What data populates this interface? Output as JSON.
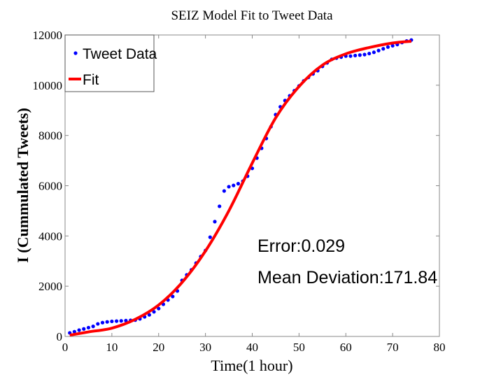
{
  "chart_data": {
    "type": "scatter",
    "title": "SEIZ Model Fit to Tweet Data",
    "xlabel": "Time(1 hour)",
    "ylabel": "I (Cummulated Tweets)",
    "xlim": [
      0,
      80
    ],
    "ylim": [
      0,
      12000
    ],
    "xticks": [
      0,
      10,
      20,
      30,
      40,
      50,
      60,
      70,
      80
    ],
    "yticks": [
      0,
      2000,
      4000,
      6000,
      8000,
      10000,
      12000
    ],
    "grid": false,
    "legend_position": "top-left",
    "series": [
      {
        "name": "Tweet Data",
        "kind": "scatter",
        "color": "#0000ff",
        "x": [
          1,
          2,
          3,
          4,
          5,
          6,
          7,
          8,
          9,
          10,
          11,
          12,
          13,
          14,
          15,
          16,
          17,
          18,
          19,
          20,
          21,
          22,
          23,
          24,
          25,
          26,
          27,
          28,
          29,
          30,
          31,
          32,
          33,
          34,
          35,
          36,
          37,
          38,
          39,
          40,
          41,
          42,
          43,
          44,
          45,
          46,
          47,
          48,
          49,
          50,
          51,
          52,
          53,
          54,
          55,
          56,
          57,
          58,
          59,
          60,
          61,
          62,
          63,
          64,
          65,
          66,
          67,
          68,
          69,
          70,
          71,
          72,
          73,
          74
        ],
        "y": [
          140,
          190,
          250,
          300,
          350,
          400,
          500,
          550,
          580,
          600,
          610,
          620,
          630,
          640,
          650,
          700,
          780,
          860,
          980,
          1110,
          1280,
          1450,
          1590,
          1810,
          2230,
          2450,
          2650,
          2920,
          3180,
          3420,
          3950,
          4570,
          5180,
          5790,
          5960,
          6010,
          6080,
          6180,
          6380,
          6690,
          7100,
          7490,
          7880,
          8350,
          8830,
          9140,
          9390,
          9580,
          9780,
          9970,
          10170,
          10310,
          10450,
          10580,
          10750,
          10890,
          11030,
          11080,
          11120,
          11160,
          11160,
          11180,
          11200,
          11220,
          11260,
          11310,
          11380,
          11450,
          11520,
          11570,
          11620,
          11700,
          11760,
          11800
        ]
      },
      {
        "name": "Fit",
        "kind": "line",
        "color": "#ff0000",
        "x": [
          1,
          5,
          10,
          15,
          20,
          25,
          30,
          35,
          40,
          45,
          50,
          55,
          60,
          65,
          70,
          74
        ],
        "y": [
          50,
          180,
          330,
          680,
          1250,
          2150,
          3400,
          5000,
          6900,
          8700,
          9950,
          10800,
          11250,
          11500,
          11680,
          11750
        ]
      }
    ],
    "annotations": [
      "Error:0.029",
      "Mean Deviation:171.84"
    ]
  }
}
